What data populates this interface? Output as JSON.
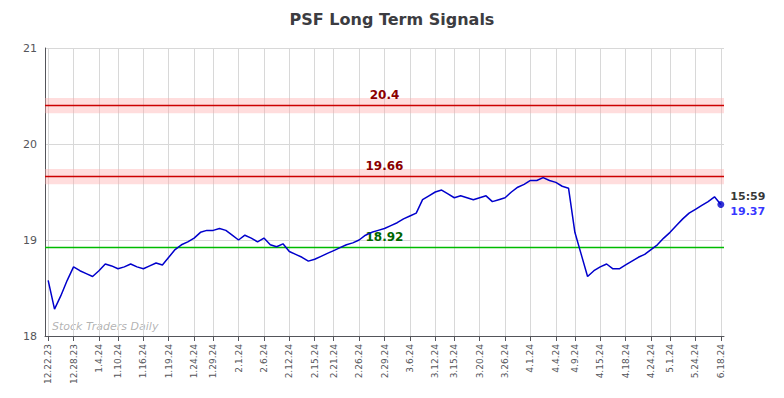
{
  "chart_data": {
    "type": "line",
    "title": "PSF Long Term Signals",
    "categories": [
      "12.22.23",
      null,
      null,
      null,
      "12.28.23",
      null,
      null,
      null,
      "1.4.24",
      null,
      null,
      "1.10.24",
      null,
      null,
      null,
      "1.16.24",
      null,
      null,
      null,
      "1.19.24",
      null,
      null,
      null,
      "1.24.24",
      null,
      null,
      "1.29.24",
      null,
      null,
      null,
      "2.1.24",
      null,
      null,
      null,
      "2.6.24",
      null,
      null,
      null,
      "2.12.24",
      null,
      null,
      null,
      "2.15.24",
      null,
      null,
      "2.21.24",
      null,
      null,
      null,
      "2.26.24",
      null,
      null,
      null,
      "2.29.24",
      null,
      null,
      null,
      "3.6.24",
      null,
      null,
      null,
      "3.12.24",
      null,
      null,
      "3.15.24",
      null,
      null,
      null,
      "3.20.24",
      null,
      null,
      null,
      "3.26.24",
      null,
      null,
      null,
      "4.1.24",
      null,
      null,
      null,
      "4.4.24",
      null,
      null,
      "4.9.24",
      null,
      null,
      null,
      "4.15.24",
      null,
      null,
      null,
      "4.18.24",
      null,
      null,
      null,
      "4.24.24",
      null,
      null,
      "5.1.24",
      null,
      null,
      null,
      "5.24.24",
      null,
      null,
      null,
      "6.18.24"
    ],
    "values": [
      18.58,
      18.28,
      18.42,
      18.58,
      18.72,
      18.68,
      18.65,
      18.62,
      18.68,
      18.75,
      18.73,
      18.7,
      18.72,
      18.75,
      18.72,
      18.7,
      18.73,
      18.76,
      18.74,
      18.82,
      18.9,
      18.95,
      18.98,
      19.02,
      19.08,
      19.1,
      19.1,
      19.12,
      19.1,
      19.05,
      19.0,
      19.05,
      19.02,
      18.98,
      19.02,
      18.95,
      18.93,
      18.96,
      18.88,
      18.85,
      18.82,
      18.78,
      18.8,
      18.83,
      18.86,
      18.89,
      18.92,
      18.95,
      18.97,
      19.0,
      19.05,
      19.08,
      19.1,
      19.12,
      19.15,
      19.18,
      19.22,
      19.25,
      19.28,
      19.42,
      19.46,
      19.5,
      19.52,
      19.48,
      19.44,
      19.46,
      19.44,
      19.42,
      19.44,
      19.46,
      19.4,
      19.42,
      19.44,
      19.5,
      19.55,
      19.58,
      19.62,
      19.62,
      19.65,
      19.62,
      19.6,
      19.56,
      19.54,
      19.08,
      18.85,
      18.62,
      18.68,
      18.72,
      18.75,
      18.7,
      18.7,
      18.74,
      18.78,
      18.82,
      18.85,
      18.9,
      18.95,
      19.02,
      19.08,
      19.15,
      19.22,
      19.28,
      19.32,
      19.36,
      19.4,
      19.45,
      19.37
    ],
    "color": "#0000cc",
    "ylim": [
      18,
      21
    ],
    "yticks": [
      18,
      19,
      20,
      21
    ],
    "grid": true,
    "reference_lines": [
      {
        "value": 20.4,
        "label": "20.4",
        "color": "#cc0000",
        "label_color": "#8b0000"
      },
      {
        "value": 19.66,
        "label": "19.66",
        "color": "#cc0000",
        "label_color": "#8b0000"
      },
      {
        "value": 18.92,
        "label": "18.92",
        "color": "#00bb00",
        "label_color": "#006600"
      }
    ],
    "bands": [
      {
        "from": 20.32,
        "to": 20.48,
        "color": "#ffaaaa"
      },
      {
        "from": 19.58,
        "to": 19.74,
        "color": "#ffaaaa"
      }
    ],
    "last_point": {
      "marker": "circle",
      "color": "#0000cc",
      "labels": [
        {
          "text": "15:59",
          "color": "black"
        },
        {
          "text": "19.37",
          "color": "blue"
        }
      ]
    },
    "watermark": "Stock Traders Daily"
  }
}
